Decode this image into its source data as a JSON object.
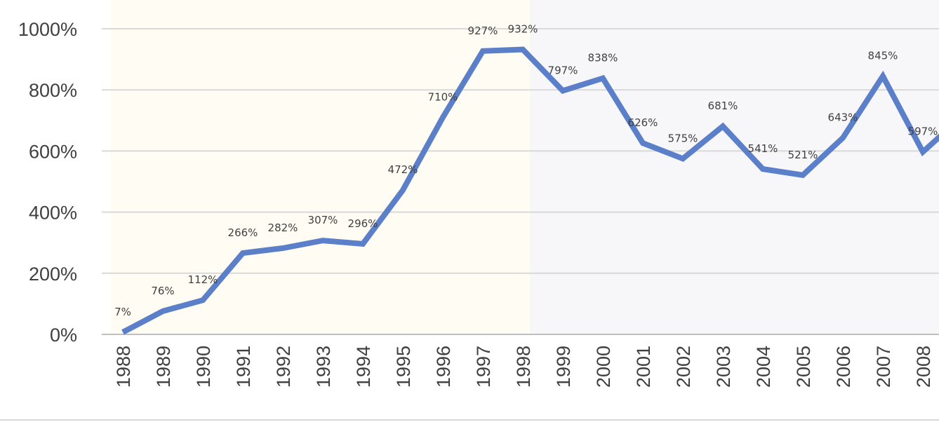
{
  "chart_data": {
    "type": "line",
    "title": "",
    "xlabel": "",
    "ylabel": "",
    "ylim": [
      0,
      1000
    ],
    "y_tick_values": [
      0,
      200,
      400,
      600,
      800,
      1000
    ],
    "y_tick_labels": [
      "0%",
      "200%",
      "400%",
      "600%",
      "800%",
      "1000%"
    ],
    "grid": true,
    "legend": "none",
    "series_color": "#5B7FC9",
    "region_colors": [
      "#FFFCF3",
      "#F7F7F9"
    ],
    "highlight_regions": [
      {
        "from": "1988",
        "to": "1998"
      },
      {
        "from": "1998",
        "to": "2008"
      }
    ],
    "categories": [
      "1988",
      "1989",
      "1990",
      "1991",
      "1992",
      "1993",
      "1994",
      "1995",
      "1996",
      "1997",
      "1998",
      "1999",
      "2000",
      "2001",
      "2002",
      "2003",
      "2004",
      "2005",
      "2006",
      "2007",
      "2008"
    ],
    "series": [
      {
        "values": [
          7,
          76,
          112,
          266,
          282,
          307,
          296,
          472,
          710,
          927,
          932,
          797,
          838,
          626,
          575,
          681,
          541,
          521,
          643,
          845,
          597
        ],
        "data_labels": [
          "7%",
          "76%",
          "112%",
          "266%",
          "282%",
          "307%",
          "296%",
          "472%",
          "710%",
          "927%",
          "932%",
          "797%",
          "838%",
          "626%",
          "575%",
          "681%",
          "541%",
          "521%",
          "643%",
          "845%",
          "597%"
        ]
      }
    ],
    "trailing_value": 680
  }
}
